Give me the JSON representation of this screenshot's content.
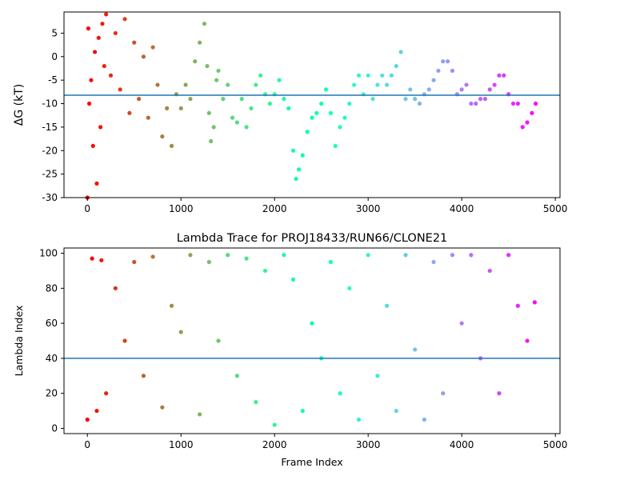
{
  "chart_data": [
    {
      "type": "scatter",
      "title": "",
      "xlabel": "",
      "ylabel": "ΔG (kT)",
      "xlim": [
        -250,
        5050
      ],
      "ylim": [
        -30,
        9.5
      ],
      "xticks": [
        0,
        1000,
        2000,
        3000,
        4000,
        5000
      ],
      "yticks": [
        -30,
        -25,
        -20,
        -15,
        -10,
        -5,
        0,
        5
      ],
      "hline": -8.2,
      "hline_color": "#1f77b4",
      "colormap": "rainbow (red at frame 0 → violet at frame 4800)",
      "grid": false,
      "legend": "none",
      "series": [
        {
          "x": [
            0,
            10,
            20,
            40,
            60,
            80,
            100,
            120,
            140,
            160,
            180,
            200,
            250,
            300,
            350,
            400,
            450,
            500,
            550,
            600,
            650,
            700,
            750,
            800,
            850,
            900,
            950,
            1000,
            1050,
            1100,
            1150,
            1200,
            1250,
            1280,
            1300,
            1320,
            1350,
            1380,
            1400,
            1450,
            1500,
            1550,
            1600,
            1650,
            1700,
            1750,
            1800,
            1850,
            1900,
            1950,
            2000,
            2050,
            2100,
            2150,
            2200,
            2230,
            2260,
            2300,
            2350,
            2400,
            2450,
            2500,
            2550,
            2600,
            2650,
            2700,
            2750,
            2800,
            2850,
            2900,
            2950,
            3000,
            3050,
            3100,
            3150,
            3200,
            3250,
            3300,
            3350,
            3400,
            3450,
            3500,
            3550,
            3600,
            3650,
            3700,
            3750,
            3800,
            3850,
            3900,
            3950,
            4000,
            4050,
            4100,
            4150,
            4200,
            4250,
            4300,
            4350,
            4400,
            4450,
            4500,
            4550,
            4600,
            4650,
            4700,
            4750,
            4790
          ],
          "y": [
            -30,
            6,
            -10,
            -5,
            -19,
            1,
            -27,
            4,
            -15,
            7,
            -2,
            9,
            -4,
            5,
            -7,
            8,
            -12,
            3,
            -9,
            0,
            -13,
            2,
            -6,
            -17,
            -11,
            -19,
            -8,
            -11,
            -6,
            -9,
            -1,
            3,
            7,
            -2,
            -12,
            -18,
            -15,
            -5,
            -3,
            -9,
            -6,
            -13,
            -14,
            -9,
            -15,
            -11,
            -6,
            -4,
            -8,
            -10,
            -8,
            -5,
            -9,
            -11,
            -20,
            -26,
            -24,
            -21,
            -16,
            -13,
            -12,
            -10,
            -7,
            -12,
            -19,
            -15,
            -13,
            -10,
            -6,
            -4,
            -8,
            -4,
            -9,
            -6,
            -4,
            -6,
            -4,
            -2,
            1,
            -9,
            -7,
            -9,
            -10,
            -8,
            -7,
            -5,
            -3,
            -1,
            -1,
            -3,
            -8,
            -7,
            -6,
            -10,
            -10,
            -9,
            -9,
            -7,
            -6,
            -4,
            -4,
            -8,
            -10,
            -10,
            -15,
            -14,
            -12,
            -10
          ],
          "color": "rainbow by frame index"
        }
      ]
    },
    {
      "type": "scatter",
      "title": "Lambda Trace for PROJ18433/RUN66/CLONE21",
      "xlabel": "Frame Index",
      "ylabel": "Lambda Index",
      "xlim": [
        -250,
        5050
      ],
      "ylim": [
        -3,
        103
      ],
      "xticks": [
        0,
        1000,
        2000,
        3000,
        4000,
        5000
      ],
      "yticks": [
        0,
        20,
        40,
        60,
        80,
        100
      ],
      "hline": 40,
      "hline_color": "#1f77b4",
      "colormap": "rainbow (red at frame 0 → violet at frame 4800)",
      "grid": false,
      "legend": "none",
      "series": [
        {
          "x": [
            0,
            50,
            100,
            150,
            200,
            300,
            400,
            500,
            600,
            700,
            800,
            900,
            1000,
            1100,
            1200,
            1300,
            1400,
            1500,
            1600,
            1700,
            1800,
            1900,
            2000,
            2100,
            2200,
            2300,
            2400,
            2500,
            2600,
            2700,
            2800,
            2900,
            3000,
            3100,
            3200,
            3300,
            3400,
            3500,
            3600,
            3700,
            3800,
            3900,
            4000,
            4100,
            4200,
            4300,
            4400,
            4500,
            4600,
            4700,
            4780
          ],
          "y": [
            5,
            97,
            10,
            96,
            20,
            80,
            50,
            95,
            30,
            98,
            12,
            70,
            55,
            99,
            8,
            95,
            50,
            99,
            30,
            97,
            15,
            90,
            2,
            99,
            85,
            10,
            60,
            40,
            95,
            20,
            80,
            5,
            99,
            30,
            70,
            10,
            99,
            45,
            5,
            95,
            20,
            99,
            60,
            99,
            40,
            90,
            20,
            99,
            70,
            50,
            72
          ],
          "color": "rainbow by frame index"
        }
      ]
    }
  ]
}
